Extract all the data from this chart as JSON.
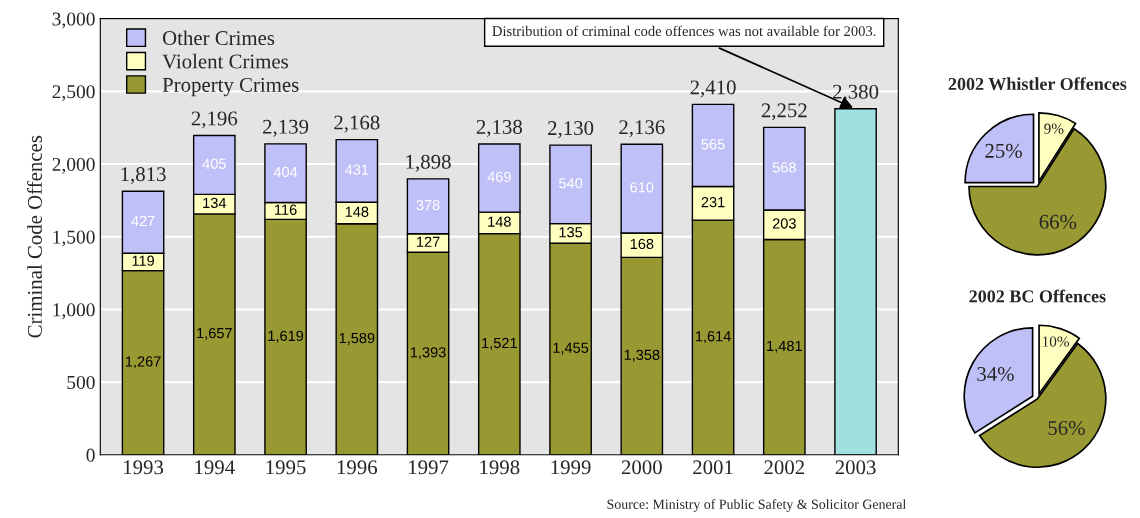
{
  "chart_data": [
    {
      "type": "bar",
      "stacked": true,
      "ylabel": "Criminal Code Offences",
      "categories": [
        "1993",
        "1994",
        "1995",
        "1996",
        "1997",
        "1998",
        "1999",
        "2000",
        "2001",
        "2002",
        "2003"
      ],
      "series": [
        {
          "name": "Property Crimes",
          "color": "#999933",
          "values": [
            1267,
            1657,
            1619,
            1589,
            1393,
            1521,
            1455,
            1358,
            1614,
            1481,
            null
          ],
          "value_labels": [
            "1,267",
            "1,657",
            "1,619",
            "1,589",
            "1,393",
            "1,521",
            "1,455",
            "1,358",
            "1,614",
            "1,481",
            null
          ]
        },
        {
          "name": "Violent Crimes",
          "color": "#ffffc0",
          "values": [
            119,
            134,
            116,
            148,
            127,
            148,
            135,
            168,
            231,
            203,
            null
          ],
          "value_labels": [
            "119",
            "134",
            "116",
            "148",
            "127",
            "148",
            "135",
            "168",
            "231",
            "203",
            null
          ]
        },
        {
          "name": "Other Crimes",
          "color": "#c0c0f8",
          "values": [
            427,
            405,
            404,
            431,
            378,
            469,
            540,
            610,
            565,
            568,
            null
          ],
          "value_labels": [
            "427",
            "405",
            "404",
            "431",
            "378",
            "469",
            "540",
            "610",
            "565",
            "568",
            null
          ]
        },
        {
          "color": "#a0e0e0",
          "values": [
            null,
            null,
            null,
            null,
            null,
            null,
            null,
            null,
            null,
            null,
            2380
          ]
        }
      ],
      "totals": [
        "1,813",
        "2,196",
        "2,139",
        "2,168",
        "1,898",
        "2,138",
        "2,130",
        "2,136",
        "2,410",
        "2,252",
        "2,380"
      ],
      "ylim": [
        0,
        3000
      ],
      "yticks": [
        0,
        500,
        {
          "value": 1000,
          "label": "1,000"
        },
        {
          "value": 1500,
          "label": "1,500"
        },
        {
          "value": 2000,
          "label": "2,000"
        },
        {
          "value": 2500,
          "label": "2,500"
        },
        {
          "value": 3000,
          "label": "3,000"
        }
      ],
      "grid": "y",
      "legend": "top left",
      "annotations": [
        {
          "text": "Distribution of criminal code offences was not available for 2003.",
          "x": "2003",
          "y": 2380
        },
        "Source: Ministry of Public Safety & Solicitor General"
      ]
    },
    {
      "type": "pie",
      "title": "2002 Whistler Offences",
      "categories": [
        null,
        null,
        null
      ],
      "values": [
        9,
        66,
        25
      ],
      "colors": [
        "#ffffc0",
        "#999933",
        "#c0c0f8"
      ],
      "value_labels": [
        "9%",
        "66%",
        "25%"
      ]
    },
    {
      "type": "pie",
      "title": "2002 BC Offences",
      "categories": [
        null,
        null,
        null
      ],
      "values": [
        10,
        56,
        34
      ],
      "colors": [
        "#ffffc0",
        "#999933",
        "#c0c0f8"
      ],
      "value_labels": [
        "10%",
        "56%",
        "34%"
      ]
    }
  ]
}
